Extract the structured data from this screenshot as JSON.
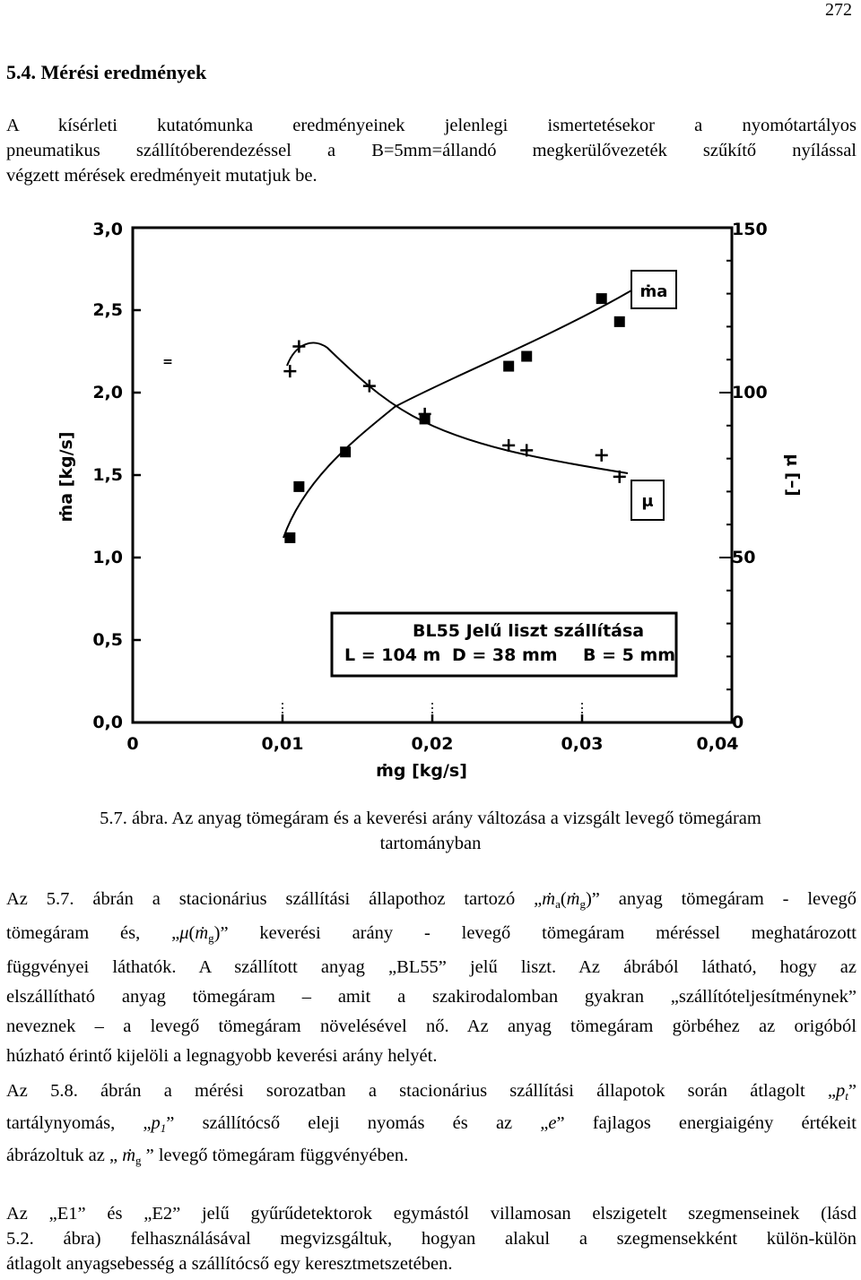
{
  "page_number": "272",
  "section_heading": "5.4. Mérési eredmények",
  "intro_lines": [
    "A kísérleti kutatómunka eredményeinek jelenlegi ismertetésekor a nyomótartályos",
    "pneumatikus szállítóberendezéssel a B=5mm=állandó megkerülővezeték szűkítő nyílással",
    "végzett mérések eredményeit mutatjuk be."
  ],
  "figure": {
    "left_axis_label": "ṁa [kg/s]",
    "right_axis_label": "μ [–]",
    "x_axis_label": "ṁg [kg/s]",
    "left_ticks": [
      "0,0",
      "0,5",
      "1,0",
      "1,5",
      "2,0",
      "2,5",
      "3,0"
    ],
    "right_ticks": [
      "0",
      "50",
      "100",
      "150"
    ],
    "x_ticks": [
      "0",
      "0,01",
      "0,02",
      "0,03",
      "0,04"
    ],
    "series_label_ma": "ṁa",
    "series_label_mu": "μ",
    "legend_line1": "BL55   Jelű liszt szállítása",
    "legend_line2_l": "L = 104 m",
    "legend_line2_d": "D = 38 mm",
    "legend_line2_b": "B = 5 mm"
  },
  "chart_data": {
    "type": "scatter",
    "x_label": "ṁg [kg/s]",
    "y_left_label": "ṁa [kg/s]",
    "y_right_label": "μ [–]",
    "xlim": [
      0,
      0.04
    ],
    "ylim_left": [
      0,
      3.0
    ],
    "ylim_right": [
      0,
      150
    ],
    "grid": false,
    "series": [
      {
        "name": "ṁa",
        "axis": "left",
        "marker": "square",
        "x": [
          0.0105,
          0.0111,
          0.0142,
          0.0195,
          0.0251,
          0.0263,
          0.0313,
          0.0325
        ],
        "y": [
          1.12,
          1.43,
          1.64,
          1.84,
          2.16,
          2.22,
          2.57,
          2.43
        ]
      },
      {
        "name": "μ",
        "axis": "right",
        "marker": "plus",
        "x": [
          0.0105,
          0.0111,
          0.0158,
          0.0195,
          0.0251,
          0.0263,
          0.0313,
          0.0325
        ],
        "y": [
          106.5,
          114,
          102,
          93.5,
          84,
          82.5,
          81,
          74.5
        ]
      }
    ],
    "legend": "bottom-right"
  },
  "caption_line1": "5.7. ábra. Az anyag tömegáram és a keverési arány változása a vizsgált levegő tömegáram",
  "caption_line2": "tartományban",
  "para2": {
    "l1_a": "Az 5.7. ábrán a stacionárius szállítási állapothoz tartozó „",
    "l1_m1": "ṁ",
    "l1_s1": "a",
    "l1_p1": "(",
    "l1_m2": "ṁ",
    "l1_s2": "g",
    "l1_b": ")” anyag tömegáram - levegő",
    "l2_a": "tömegáram és, „",
    "l2_mu": "μ",
    "l2_p": "(",
    "l2_m": "ṁ",
    "l2_s": "g",
    "l2_b": ")” keverési arány - levegő tömegáram méréssel meghatározott",
    "l3": "függvényei láthatók. A szállított anyag „BL55” jelű liszt. Az ábrából látható, hogy az",
    "l4": "elszállítható anyag tömegáram – amit a szakirodalomban gyakran „szállítóteljesítménynek”",
    "l5": "neveznek – a levegő tömegáram növelésével nő. Az anyag tömegáram görbéhez az origóból",
    "l6": "húzható érintő kijelöli a legnagyobb keverési arány helyét."
  },
  "para3": {
    "l1_a": "Az 5.8. ábrán a mérési sorozatban a stacionárius szállítási állapotok során átlagolt „",
    "l1_v": "p",
    "l1_s": "t",
    "l1_b": "”",
    "l2_a": "tartálynyomás, „",
    "l2_v": "p",
    "l2_s": "1",
    "l2_b": "” szállítócső eleji nyomás és az „",
    "l2_e": "e",
    "l2_c": "” fajlagos energiaigény értékeit",
    "l3_a": "ábrázoltuk az „ ",
    "l3_m": "ṁ",
    "l3_s": "g",
    "l3_b": " ” levegő tömegáram függvényében."
  },
  "para4_lines": [
    "Az „E1” és „E2” jelű gyűrűdetektorok egymástól villamosan elszigetelt szegmenseinek (lásd",
    "5.2. ábra) felhasználásával megvizsgáltuk, hogyan alakul a szegmensekként külön-külön",
    "átlagolt anyagsebesség a szállítócső egy keresztmetszetében."
  ]
}
